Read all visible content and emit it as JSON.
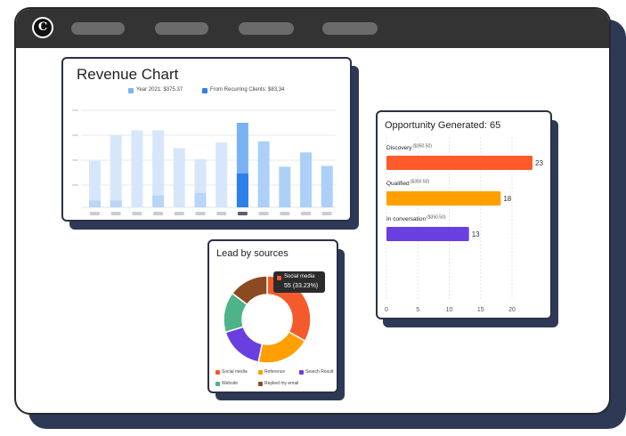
{
  "window": {
    "logo_letter": "C",
    "nav_pills": 4
  },
  "revenue": {
    "title": "Revenue Chart",
    "legend": [
      {
        "label": "Year 2021: $375.37",
        "color": "#7fb3f0"
      },
      {
        "label": "From Recurring Clients: $83.34",
        "color": "#2f7fe8"
      }
    ]
  },
  "opportunity": {
    "title": "Opportunity Generated: 65",
    "bars": [
      {
        "label": "Discovery",
        "note": "($350.50)",
        "value": 23,
        "value_label": "23",
        "color": "#ff5a2a"
      },
      {
        "label": "Qualified",
        "note": "($350.50)",
        "value": 18,
        "value_label": "18",
        "color": "#ffa000"
      },
      {
        "label": "In conversation",
        "note": "($350.50)",
        "value": 13,
        "value_label": "13",
        "color": "#6a3fe0"
      }
    ],
    "xticks": [
      "0",
      "5",
      "10",
      "15",
      "20"
    ],
    "xmax": 25
  },
  "leads": {
    "title": "Lead by sources",
    "tooltip": {
      "label": "Social media",
      "value": "55 (33.23%)"
    },
    "legend": [
      {
        "label": "Social media",
        "color": "#f55a2c"
      },
      {
        "label": "Reference",
        "color": "#ffa000"
      },
      {
        "label": "Search Result",
        "color": "#6a3fe0"
      },
      {
        "label": "Website",
        "color": "#4fb38a"
      },
      {
        "label": "Replied my email",
        "color": "#8b4a22"
      }
    ]
  },
  "chart_data": [
    {
      "type": "bar",
      "title": "Revenue Chart",
      "series": [
        {
          "name": "Year 2021: $375.37",
          "values": [
            0.55,
            0.85,
            0.91,
            0.91,
            0.7,
            0.57,
            0.77,
            1.0,
            0.78,
            0.48,
            0.65,
            0.49
          ]
        },
        {
          "name": "From Recurring Clients: $83.34",
          "values": [
            0.08,
            0.08,
            0.0,
            0.14,
            0.0,
            0.17,
            0.0,
            0.4,
            0.0,
            0.0,
            0.0,
            0.0
          ]
        }
      ],
      "highlighted_index": 7
    },
    {
      "type": "bar",
      "orientation": "horizontal",
      "title": "Opportunity Generated: 65",
      "categories": [
        "Discovery",
        "Qualified",
        "In conversation"
      ],
      "values": [
        23,
        18,
        13
      ],
      "xlim": [
        0,
        25
      ]
    },
    {
      "type": "pie",
      "title": "Lead by sources",
      "donut": true,
      "labels": [
        "Social media",
        "Reference",
        "Search Result",
        "Website",
        "Replied my email"
      ],
      "values": [
        33.23,
        20,
        17,
        15,
        14.77
      ]
    }
  ]
}
